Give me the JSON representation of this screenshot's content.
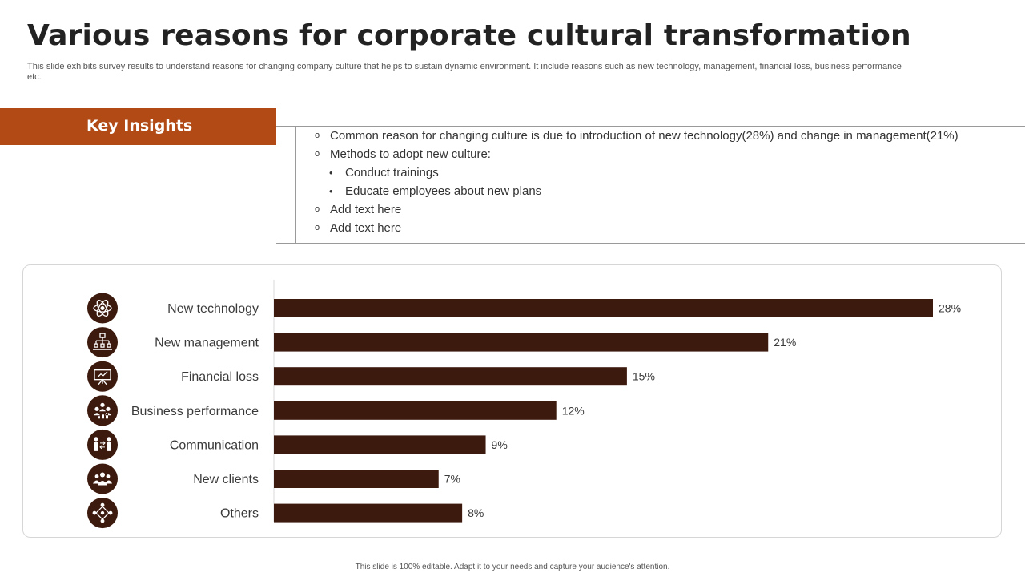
{
  "title": "Various reasons for corporate cultural transformation",
  "subtitle": "This slide exhibits survey results to understand reasons for changing company culture that helps to sustain dynamic environment. It include reasons such as new technology, management, financial loss, business performance etc.",
  "insights": {
    "heading": "Key Insights",
    "items": [
      {
        "level": 1,
        "marker": "o",
        "text": "Common reason for changing culture is due to introduction of new technology(28%) and change in management(21%)"
      },
      {
        "level": 1,
        "marker": "o",
        "text": "Methods to adopt new culture:"
      },
      {
        "level": 2,
        "marker": "•",
        "text": "Conduct trainings"
      },
      {
        "level": 2,
        "marker": "•",
        "text": "Educate employees about new plans"
      },
      {
        "level": 1,
        "marker": "o",
        "text": "Add text here"
      },
      {
        "level": 1,
        "marker": "o",
        "text": "Add text here"
      }
    ]
  },
  "chart_data": {
    "type": "bar",
    "orientation": "horizontal",
    "categories": [
      "New technology",
      "New management",
      "Financial loss",
      "Business performance",
      "Communication",
      "New clients",
      "Others"
    ],
    "values": [
      28,
      21,
      15,
      12,
      9,
      7,
      8
    ],
    "value_labels": [
      "28%",
      "21%",
      "15%",
      "12%",
      "9%",
      "7%",
      "8%"
    ],
    "icons": [
      "atom-icon",
      "org-chart-icon",
      "presentation-board-icon",
      "team-growth-icon",
      "people-exchange-icon",
      "user-group-icon",
      "network-people-icon"
    ],
    "xlim": [
      0,
      28
    ],
    "grid": false,
    "bar_color": "#3d1a0e",
    "icon_bg": "#3d1a0e"
  },
  "colors": {
    "accent": "#b14a14",
    "bar": "#3d1a0e",
    "title": "#222222"
  },
  "footer": "This slide is 100% editable. Adapt it to your needs and capture your audience's attention."
}
